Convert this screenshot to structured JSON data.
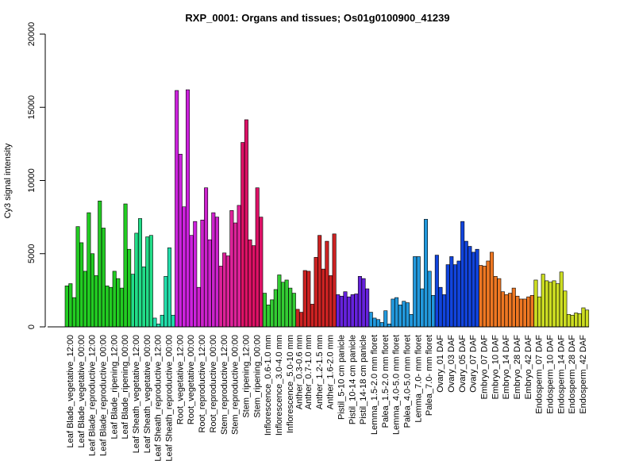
{
  "chart_data": {
    "type": "bar",
    "title": "RXP_0001: Organs and tissues; Os01g0100900_41239",
    "ylabel": "Cy3 signal intensity",
    "xlabel": "",
    "ylim": [
      0,
      20000
    ],
    "yticks": [
      0,
      5000,
      10000,
      15000,
      20000
    ],
    "grid": false,
    "legend": "none",
    "groups": [
      {
        "label": "Leaf Blade_vegetative_12:00",
        "color": "#22cc22",
        "values": [
          2800,
          2950,
          2000
        ]
      },
      {
        "label": "Leaf Blade_vegetative_00:00",
        "color": "#22cc22",
        "values": [
          6850,
          5750,
          3800
        ]
      },
      {
        "label": "Leaf Blade_reproductive_12:00",
        "color": "#22cc22",
        "values": [
          7800,
          5000,
          3500
        ]
      },
      {
        "label": "Leaf Blade_reproductive_00:00",
        "color": "#22cc22",
        "values": [
          8600,
          6750,
          2800
        ]
      },
      {
        "label": "Leaf Blade_ripening_12:00",
        "color": "#22cc22",
        "values": [
          2700,
          3800,
          3300
        ]
      },
      {
        "label": "Leaf Blade_ripening_00:00",
        "color": "#22cc22",
        "values": [
          2650,
          8400,
          5300
        ]
      },
      {
        "label": "Leaf Sheath_vegetative_12:00",
        "color": "#22dd88",
        "values": [
          3600,
          6400,
          7400
        ]
      },
      {
        "label": "Leaf Sheath_vegetative_00:00",
        "color": "#22dd88",
        "values": [
          4100,
          6150,
          6250
        ]
      },
      {
        "label": "Leaf Sheath_reproductive_12:00",
        "color": "#22ddaa",
        "values": [
          600,
          200,
          800
        ]
      },
      {
        "label": "Leaf Sheath_reproductive_00:00",
        "color": "#22ddaa",
        "values": [
          3450,
          5400,
          800
        ]
      },
      {
        "label": "Root_vegetative_12:00",
        "color": "#cc22dd",
        "values": [
          16150,
          11800,
          8200
        ]
      },
      {
        "label": "Root_vegetative_00:00",
        "color": "#cc22dd",
        "values": [
          16200,
          6250,
          7200
        ]
      },
      {
        "label": "Root_reproductive_12:00",
        "color": "#cc22cc",
        "values": [
          2700,
          7300,
          9500
        ]
      },
      {
        "label": "Root_reproductive_00:00",
        "color": "#cc22cc",
        "values": [
          5950,
          7800,
          7500
        ]
      },
      {
        "label": "Stem_reproductive_12:00",
        "color": "#dd2299",
        "values": [
          4150,
          5050,
          4850
        ]
      },
      {
        "label": "Stem_reproductive_00:00",
        "color": "#dd2299",
        "values": [
          7950,
          7100,
          8300
        ]
      },
      {
        "label": "Stem_ripening_12:00",
        "color": "#dd1166",
        "values": [
          12600,
          14150,
          5950
        ]
      },
      {
        "label": "Stem_ripening_00:00",
        "color": "#dd1166",
        "values": [
          5550,
          9500,
          7500
        ]
      },
      {
        "label": "Inflorescence_0.6-1.0 mm",
        "color": "#33cc33",
        "values": [
          2300,
          1500,
          1850
        ]
      },
      {
        "label": "Inflorescence_3.0-4.0 mm",
        "color": "#33cc33",
        "values": [
          2550,
          3550,
          3050
        ]
      },
      {
        "label": "Inflorescence_5.0-10 mm",
        "color": "#33cc33",
        "values": [
          3200,
          2650,
          2300
        ]
      },
      {
        "label": "Anther_0.3-0.6 mm",
        "color": "#cc2222",
        "values": [
          1200,
          1000
        ]
      },
      {
        "label": "Anther_0.7-1.0 mm",
        "color": "#cc2222",
        "values": [
          3850,
          3800,
          1550
        ]
      },
      {
        "label": "Anther_1.2-1.5 mm",
        "color": "#cc2222",
        "values": [
          4750,
          6250,
          3950
        ]
      },
      {
        "label": "Anther_1.6-2.0 mm",
        "color": "#cc2222",
        "values": [
          5850,
          3500,
          6350
        ]
      },
      {
        "label": "Pistil_5-10 cm panicle",
        "color": "#6622dd",
        "values": [
          2200,
          2100,
          2400
        ]
      },
      {
        "label": "Pistil_10-14 cm panicle",
        "color": "#6622dd",
        "values": [
          2050,
          2200,
          2250
        ]
      },
      {
        "label": "Pistil_14-18 cm panicle",
        "color": "#6622dd",
        "values": [
          3450,
          3300,
          2600
        ]
      },
      {
        "label": "Lemma_1.5-2.0 mm floret",
        "color": "#2299dd",
        "values": [
          1000,
          600,
          500
        ]
      },
      {
        "label": "Palea_1.5-2.0 mm floret",
        "color": "#2299dd",
        "values": [
          300,
          1100,
          200
        ]
      },
      {
        "label": "Lemma_4.0-5.0 mm floret",
        "color": "#2299dd",
        "values": [
          1900,
          2000,
          1500
        ]
      },
      {
        "label": "Palea_4.0-5.0 mm floret",
        "color": "#2299dd",
        "values": [
          1750,
          1650,
          850
        ]
      },
      {
        "label": "Lemma_7.0- mm floret",
        "color": "#2299dd",
        "values": [
          4800,
          4800,
          2600
        ]
      },
      {
        "label": "Palea_7.0- mm floret",
        "color": "#2299dd",
        "values": [
          7350,
          3800,
          2150
        ]
      },
      {
        "label": "Ovary_01 DAF",
        "color": "#1144dd",
        "values": [
          4900,
          2700,
          2200
        ]
      },
      {
        "label": "Ovary_03 DAF",
        "color": "#1144dd",
        "values": [
          4250,
          4800,
          4250
        ]
      },
      {
        "label": "Ovary_05 DAF",
        "color": "#1144dd",
        "values": [
          4500,
          7200,
          5850
        ]
      },
      {
        "label": "Ovary_07 DAF",
        "color": "#1144dd",
        "values": [
          5500,
          5100,
          5300
        ]
      },
      {
        "label": "Embryo_07 DAF",
        "color": "#ee7722",
        "values": [
          4200,
          4150,
          4500
        ]
      },
      {
        "label": "Embryo_10 DAF",
        "color": "#ee7722",
        "values": [
          5100,
          3450,
          3300
        ]
      },
      {
        "label": "Embryo_14 DAF",
        "color": "#ee7722",
        "values": [
          2400,
          2200,
          2300
        ]
      },
      {
        "label": "Embryo_28 DAF",
        "color": "#ee7722",
        "values": [
          2650,
          2100,
          1900
        ]
      },
      {
        "label": "Embryo_42 DAF",
        "color": "#ee7722",
        "values": [
          1900,
          2050,
          2150
        ]
      },
      {
        "label": "Endosperm_07 DAF",
        "color": "#ccdd22",
        "values": [
          3200,
          2050,
          3600
        ]
      },
      {
        "label": "Endosperm_10 DAF",
        "color": "#ccdd22",
        "values": [
          3150,
          3050,
          3150
        ]
      },
      {
        "label": "Endosperm_14 DAF",
        "color": "#ccdd22",
        "values": [
          2950,
          3750,
          2450
        ]
      },
      {
        "label": "Endosperm_28 DAF",
        "color": "#ccdd22",
        "values": [
          850,
          800,
          950
        ]
      },
      {
        "label": "Endosperm_42 DAF",
        "color": "#ccdd22",
        "values": [
          900,
          1300,
          1150
        ]
      }
    ]
  }
}
